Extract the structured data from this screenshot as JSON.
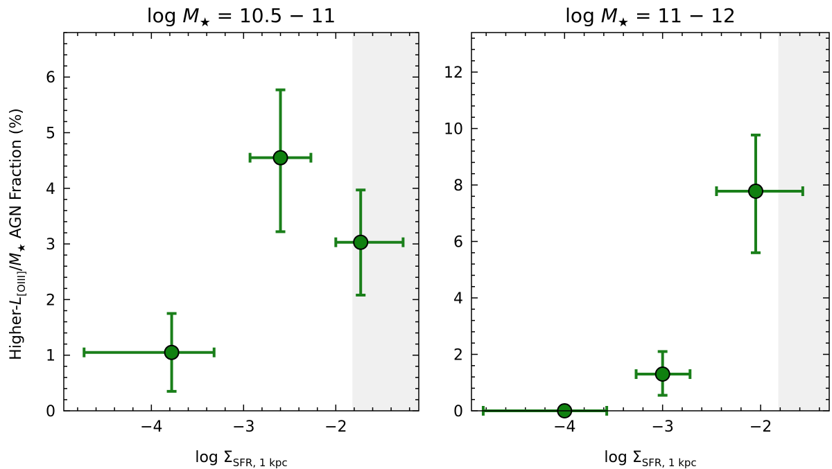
{
  "ylabel": {
    "pre": "Higher-",
    "L": "L",
    "L_sub": "[OIII]",
    "slash": "/",
    "M": "M",
    "M_sub": "★",
    "post": " AGN Fraction (%)"
  },
  "xlabel": {
    "pre": "log Σ",
    "sub": "SFR, 1 kpc"
  },
  "style": {
    "point_color": "#1a7f1a",
    "marker_fill": "#108010",
    "shade_color": "#f0f0f0"
  },
  "chart_data": [
    {
      "type": "scatter",
      "title": {
        "pre": "log ",
        "M": "M",
        "M_sub": "★",
        "post": " = 10.5 − 11"
      },
      "xlim": [
        -4.95,
        -1.1
      ],
      "ylim": [
        0,
        6.8
      ],
      "xticks": [
        -4,
        -3,
        -2
      ],
      "xtick_labels": [
        "−4",
        "−3",
        "−2"
      ],
      "yticks": [
        0,
        1,
        2,
        3,
        4,
        5,
        6
      ],
      "ytick_labels": [
        "0",
        "1",
        "2",
        "3",
        "4",
        "5",
        "6"
      ],
      "shaded_xrange": [
        -1.82,
        -1.1
      ],
      "points": [
        {
          "x": -3.78,
          "y": 1.05,
          "xerr_low": -4.73,
          "xerr_high": -3.32,
          "yerr_low": 0.35,
          "yerr_high": 1.75
        },
        {
          "x": -2.6,
          "y": 4.55,
          "xerr_low": -2.93,
          "xerr_high": -2.27,
          "yerr_low": 3.22,
          "yerr_high": 5.77
        },
        {
          "x": -1.73,
          "y": 3.03,
          "xerr_low": -2.0,
          "xerr_high": -1.27,
          "yerr_low": 2.08,
          "yerr_high": 3.97
        }
      ]
    },
    {
      "type": "scatter",
      "title": {
        "pre": "log ",
        "M": "M",
        "M_sub": "★",
        "post": " = 11 − 12"
      },
      "xlim": [
        -4.95,
        -1.3
      ],
      "ylim": [
        0,
        13.4
      ],
      "xticks": [
        -4,
        -3,
        -2
      ],
      "xtick_labels": [
        "−4",
        "−3",
        "−2"
      ],
      "yticks": [
        0,
        2,
        4,
        6,
        8,
        10,
        12
      ],
      "ytick_labels": [
        "0",
        "2",
        "4",
        "6",
        "8",
        "10",
        "12"
      ],
      "shaded_xrange": [
        -1.82,
        -1.3
      ],
      "points": [
        {
          "x": -4.0,
          "y": 0.0,
          "xerr_low": -4.83,
          "xerr_high": -3.57,
          "yerr_low": 0.0,
          "yerr_high": 0.0
        },
        {
          "x": -3.0,
          "y": 1.3,
          "xerr_low": -3.27,
          "xerr_high": -2.72,
          "yerr_low": 0.55,
          "yerr_high": 2.1
        },
        {
          "x": -2.05,
          "y": 7.78,
          "xerr_low": -2.45,
          "xerr_high": -1.57,
          "yerr_low": 5.6,
          "yerr_high": 9.77
        }
      ]
    }
  ]
}
